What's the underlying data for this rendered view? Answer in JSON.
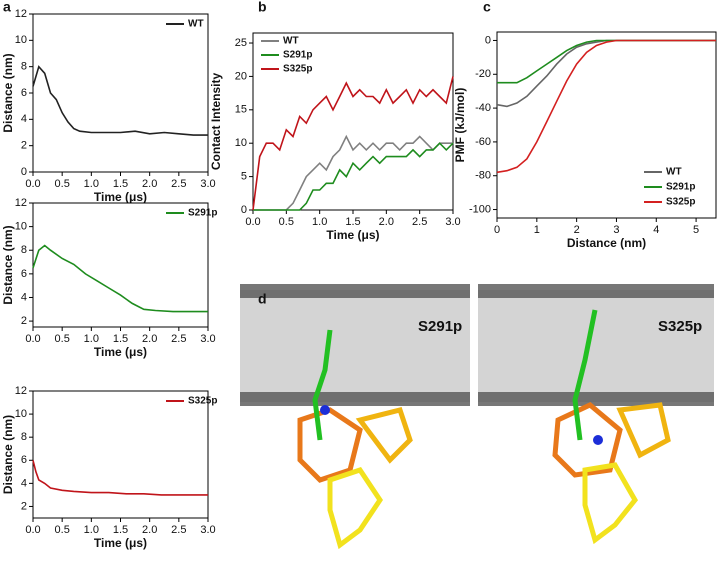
{
  "chart_data": [
    {
      "type": "line",
      "panel": "a",
      "xlabel": "Time (μs)",
      "ylabel": "Distance (nm)",
      "legend": "top-right",
      "xlim": [
        0,
        3
      ],
      "ylim": [
        0,
        12
      ],
      "xticks": [
        {
          "value": 0,
          "label": "0.0"
        },
        0.5,
        {
          "value": 1,
          "label": "1.0"
        },
        1.5,
        {
          "value": 2,
          "label": "2.0"
        },
        2.5,
        {
          "value": 3,
          "label": "3.0"
        }
      ],
      "yticks": [
        0,
        2,
        4,
        6,
        8,
        10,
        12
      ],
      "x": [
        0,
        0.1,
        0.2,
        0.3,
        0.4,
        0.5,
        0.6,
        0.7,
        0.8,
        1.0,
        1.25,
        1.5,
        1.75,
        2.0,
        2.25,
        2.5,
        2.75,
        3.0
      ],
      "series": [
        {
          "name": "WT",
          "color": "#222222",
          "values": [
            6.5,
            8,
            7.5,
            6,
            5.5,
            4.5,
            3.8,
            3.3,
            3.1,
            3.0,
            3.0,
            3.0,
            3.1,
            2.9,
            3.0,
            2.9,
            2.8,
            2.8
          ]
        }
      ]
    },
    {
      "type": "line",
      "xlabel": "Time (μs)",
      "ylabel": "Distance (nm)",
      "legend": "top-right",
      "xlim": [
        0,
        3
      ],
      "ylim": [
        1.5,
        12
      ],
      "xticks": [
        {
          "value": 0,
          "label": "0.0"
        },
        0.5,
        {
          "value": 1,
          "label": "1.0"
        },
        1.5,
        {
          "value": 2,
          "label": "2.0"
        },
        2.5,
        {
          "value": 3,
          "label": "3.0"
        }
      ],
      "yticks": [
        2,
        4,
        6,
        8,
        10,
        12
      ],
      "x": [
        0,
        0.1,
        0.2,
        0.3,
        0.5,
        0.7,
        0.9,
        1.1,
        1.3,
        1.5,
        1.7,
        1.9,
        2.1,
        2.4,
        2.7,
        3.0
      ],
      "series": [
        {
          "name": "S291p",
          "color": "#1e8c1e",
          "values": [
            6.5,
            8,
            8.4,
            8,
            7.3,
            6.8,
            6,
            5.4,
            4.8,
            4.2,
            3.5,
            3.0,
            2.9,
            2.8,
            2.8,
            2.8
          ]
        }
      ]
    },
    {
      "type": "line",
      "xlabel": "Time (μs)",
      "ylabel": "Distance (nm)",
      "legend": "top-right",
      "xlim": [
        0,
        3
      ],
      "ylim": [
        1,
        12
      ],
      "xticks": [
        {
          "value": 0,
          "label": "0.0"
        },
        0.5,
        {
          "value": 1,
          "label": "1.0"
        },
        1.5,
        {
          "value": 2,
          "label": "2.0"
        },
        2.5,
        {
          "value": 3,
          "label": "3.0"
        }
      ],
      "yticks": [
        2,
        4,
        6,
        8,
        10,
        12
      ],
      "x": [
        0,
        0.05,
        0.1,
        0.2,
        0.3,
        0.5,
        0.7,
        1.0,
        1.3,
        1.6,
        1.9,
        2.2,
        2.5,
        2.8,
        3.0
      ],
      "series": [
        {
          "name": "S325p",
          "color": "#c0141a",
          "values": [
            6,
            5,
            4.3,
            4,
            3.6,
            3.4,
            3.3,
            3.2,
            3.2,
            3.1,
            3.1,
            3.0,
            3.0,
            3.0,
            3.0
          ]
        }
      ]
    },
    {
      "type": "line",
      "panel": "b",
      "xlabel": "Time (μs)",
      "ylabel": "Contact Intensity",
      "legend": "top-left",
      "xlim": [
        0,
        3
      ],
      "ylim": [
        0,
        26.5
      ],
      "xticks": [
        {
          "value": 0,
          "label": "0.0"
        },
        0.5,
        {
          "value": 1,
          "label": "1.0"
        },
        1.5,
        {
          "value": 2,
          "label": "2.0"
        },
        2.5,
        {
          "value": 3,
          "label": "3.0"
        }
      ],
      "yticks": [
        0,
        5,
        10,
        15,
        20,
        25
      ],
      "x": [
        0,
        0.1,
        0.2,
        0.3,
        0.4,
        0.5,
        0.6,
        0.7,
        0.8,
        0.9,
        1.0,
        1.1,
        1.2,
        1.3,
        1.4,
        1.5,
        1.6,
        1.7,
        1.8,
        1.9,
        2.0,
        2.1,
        2.2,
        2.3,
        2.4,
        2.5,
        2.6,
        2.7,
        2.8,
        2.9,
        3.0
      ],
      "series": [
        {
          "name": "WT",
          "color": "#808080",
          "values": [
            0,
            0,
            0,
            0,
            0,
            0,
            1,
            3,
            5,
            6,
            7,
            6,
            8,
            9,
            11,
            9,
            10,
            9,
            10,
            9,
            10,
            10,
            9,
            10,
            10,
            11,
            10,
            9,
            10,
            10,
            10
          ]
        },
        {
          "name": "S291p",
          "color": "#1e8c1e",
          "values": [
            0,
            0,
            0,
            0,
            0,
            0,
            0,
            0,
            1,
            3,
            3,
            4,
            4,
            6,
            5,
            7,
            6,
            7,
            8,
            7,
            8,
            8,
            8,
            8,
            9,
            8,
            9,
            9,
            10,
            9,
            10
          ]
        },
        {
          "name": "S325p",
          "color": "#c0141a",
          "values": [
            0,
            8,
            10,
            10,
            9,
            12,
            11,
            14,
            13,
            15,
            16,
            17,
            15,
            17,
            19,
            17,
            18,
            17,
            17,
            16,
            18,
            16,
            17,
            18,
            16,
            18,
            17,
            18,
            17,
            16,
            20
          ]
        }
      ]
    },
    {
      "type": "line",
      "panel": "c",
      "xlabel": "Distance (nm)",
      "ylabel": "PMF (kJ/mol)",
      "legend": "bottom-right",
      "xlim": [
        0,
        5.5
      ],
      "ylim": [
        -105,
        5
      ],
      "xticks": [
        0,
        1,
        2,
        3,
        4,
        5
      ],
      "yticks": [
        0,
        -20,
        -40,
        -60,
        -80,
        -100
      ],
      "x": [
        0,
        0.25,
        0.5,
        0.75,
        1,
        1.25,
        1.5,
        1.75,
        2,
        2.25,
        2.5,
        2.75,
        3,
        3.25,
        3.5,
        3.75,
        4,
        4.25,
        4.5,
        4.75,
        5,
        5.25,
        5.5
      ],
      "series": [
        {
          "name": "WT",
          "color": "#666666",
          "values": [
            -38,
            -39,
            -37,
            -33,
            -27,
            -21,
            -14,
            -8,
            -4,
            -2,
            -1,
            0,
            0,
            0,
            0,
            0,
            0,
            0,
            0,
            0,
            0,
            0,
            0
          ]
        },
        {
          "name": "S291p",
          "color": "#1e8c1e",
          "values": [
            -25,
            -25,
            -25,
            -22,
            -18,
            -14,
            -10,
            -6,
            -3,
            -1,
            0,
            0,
            0,
            0,
            0,
            0,
            0,
            0,
            0,
            0,
            0,
            0,
            0
          ]
        },
        {
          "name": "S325p",
          "color": "#d42020",
          "values": [
            -78,
            -77,
            -75,
            -70,
            -60,
            -48,
            -36,
            -24,
            -14,
            -7,
            -3,
            -1,
            0,
            0,
            0,
            0,
            0,
            0,
            0,
            0,
            0,
            0,
            0
          ]
        }
      ]
    }
  ],
  "figure_d": {
    "panel": "d",
    "labels": [
      "S291p",
      "S325p"
    ]
  }
}
